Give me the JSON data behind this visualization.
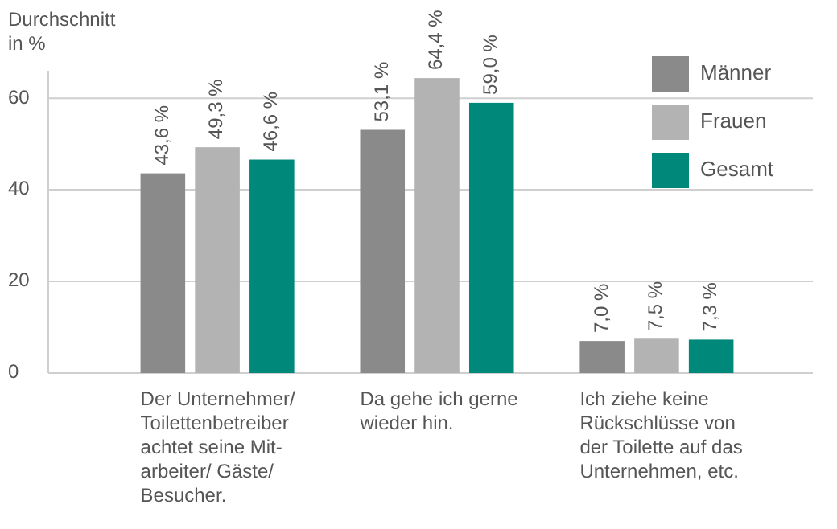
{
  "chart_data": {
    "type": "bar",
    "ylabel": "Durchschnitt\nin %",
    "categories": [
      "Der Unternehmer/\nToilettenbetreiber\nachtet seine Mit-\narbeiter/ Gäste/\nBesucher.",
      "Da gehe ich gerne\nwieder hin.",
      "Ich ziehe keine\nRückschlüsse von\nder Toilette auf das\nUnternehmen, etc."
    ],
    "series": [
      {
        "name": "Männer",
        "color": "#8a8a8a",
        "values": [
          43.6,
          53.1,
          7.0
        ],
        "value_labels": [
          "43,6 %",
          "53,1 %",
          "7,0 %"
        ]
      },
      {
        "name": "Frauen",
        "color": "#b3b3b3",
        "values": [
          49.3,
          64.4,
          7.5
        ],
        "value_labels": [
          "49,3 %",
          "64,4 %",
          "7,5 %"
        ]
      },
      {
        "name": "Gesamt",
        "color": "#00897a",
        "values": [
          46.6,
          59.0,
          7.3
        ],
        "value_labels": [
          "46,6 %",
          "59,0 %",
          "7,3 %"
        ]
      }
    ],
    "ylim": [
      0,
      66
    ],
    "yticks": [
      0,
      20,
      40,
      60
    ],
    "grid": "y",
    "legend": "top right"
  }
}
